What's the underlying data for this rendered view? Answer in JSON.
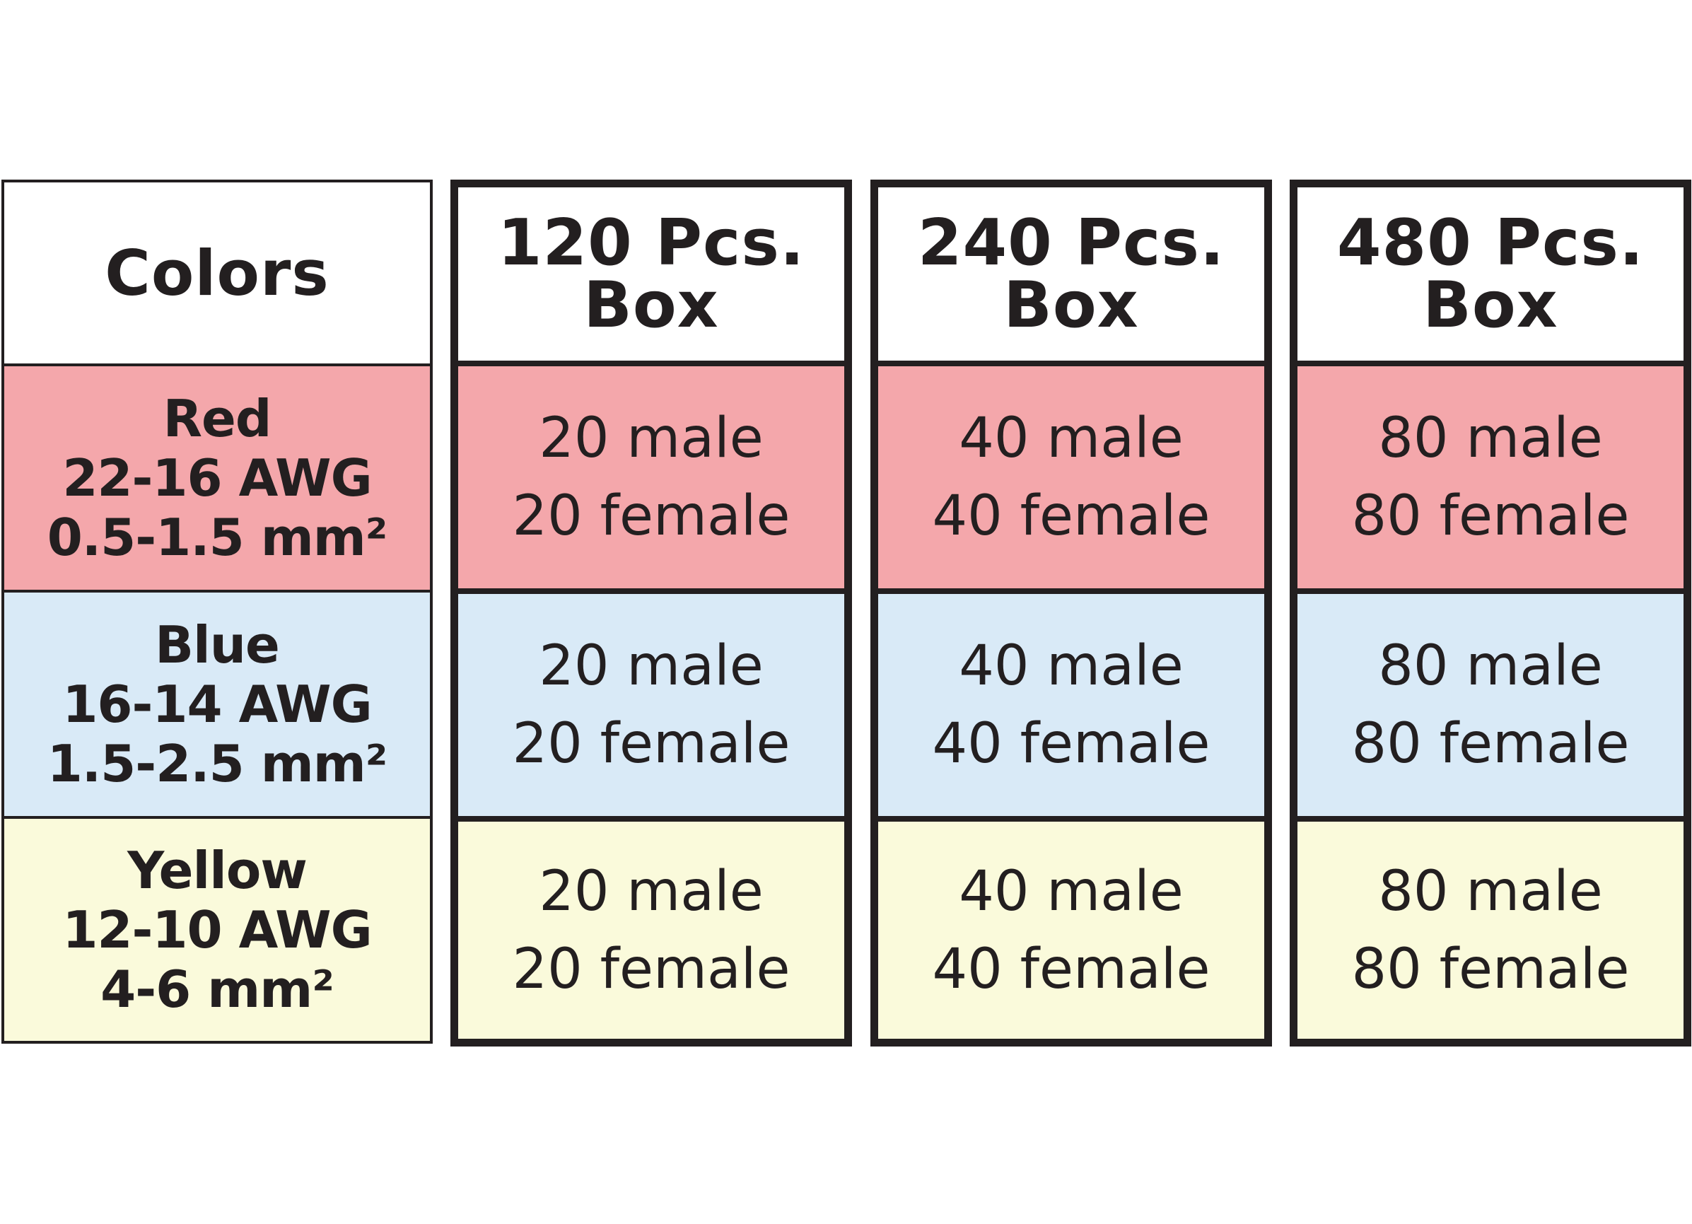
{
  "table": {
    "colors_header": "Colors",
    "boxes": [
      {
        "header_line1": "120 Pcs.",
        "header_line2": "Box",
        "rows": [
          {
            "male": "20 male",
            "female": "20 female"
          },
          {
            "male": "20 male",
            "female": "20 female"
          },
          {
            "male": "20 male",
            "female": "20 female"
          }
        ]
      },
      {
        "header_line1": "240 Pcs.",
        "header_line2": "Box",
        "rows": [
          {
            "male": "40 male",
            "female": "40 female"
          },
          {
            "male": "40 male",
            "female": "40 female"
          },
          {
            "male": "40 male",
            "female": "40 female"
          }
        ]
      },
      {
        "header_line1": "480 Pcs.",
        "header_line2": "Box",
        "rows": [
          {
            "male": "80 male",
            "female": "80 female"
          },
          {
            "male": "80 male",
            "female": "80 female"
          },
          {
            "male": "80 male",
            "female": "80 female"
          }
        ]
      }
    ],
    "colors": [
      {
        "name": "Red",
        "awg": "22-16 AWG",
        "mm": "0.5-1.5 mm²",
        "color": "#f4a7ab"
      },
      {
        "name": "Blue",
        "awg": "16-14 AWG",
        "mm": "1.5-2.5 mm²",
        "color": "#d9eaf7"
      },
      {
        "name": "Yellow",
        "awg": "12-10 AWG",
        "mm": "4-6 mm²",
        "color": "#fafadb"
      }
    ],
    "border_color": "#231f20"
  }
}
